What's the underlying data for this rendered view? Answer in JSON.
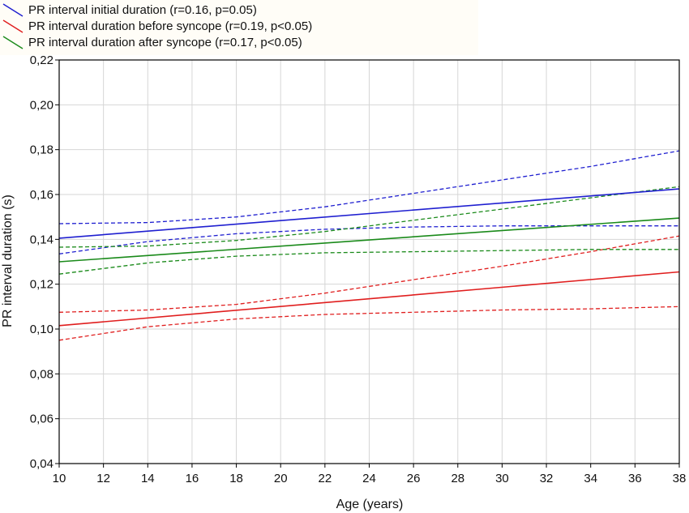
{
  "chart_data": {
    "type": "line",
    "title": "",
    "xlabel": "Age (years)",
    "ylabel": "PR interval duration (s)",
    "xlim": [
      10,
      38
    ],
    "ylim": [
      0.04,
      0.22
    ],
    "x_ticks": [
      10,
      12,
      14,
      16,
      18,
      20,
      22,
      24,
      26,
      28,
      30,
      32,
      34,
      36,
      38
    ],
    "x_tick_labels": [
      "10",
      "12",
      "14",
      "16",
      "18",
      "20",
      "22",
      "24",
      "26",
      "28",
      "30",
      "32",
      "34",
      "36",
      "38"
    ],
    "y_ticks": [
      0.04,
      0.06,
      0.08,
      0.1,
      0.12,
      0.14,
      0.16,
      0.18,
      0.2,
      0.22
    ],
    "y_tick_labels": [
      "0,04",
      "0,06",
      "0,08",
      "0,10",
      "0,12",
      "0,14",
      "0,16",
      "0,18",
      "0,20",
      "0,22"
    ],
    "grid": true,
    "legend_position": "top-left",
    "series": [
      {
        "name": "PR interval initial duration (r=0.16, p=0.05)",
        "color": "#1f1fd0",
        "x": [
          10,
          38
        ],
        "y": [
          0.1405,
          0.1625
        ],
        "ci_x": [
          10,
          14,
          18,
          22,
          26,
          30,
          34,
          38
        ],
        "ci_upper": [
          0.147,
          0.1475,
          0.15,
          0.1545,
          0.1605,
          0.1665,
          0.1725,
          0.1795
        ],
        "ci_lower": [
          0.1335,
          0.139,
          0.1425,
          0.1445,
          0.1455,
          0.146,
          0.146,
          0.146
        ]
      },
      {
        "name": "PR interval duration before syncope (r=0.19, p<0.05)",
        "color": "#e01e1e",
        "x": [
          10,
          38
        ],
        "y": [
          0.1015,
          0.1255
        ],
        "ci_x": [
          10,
          14,
          18,
          22,
          26,
          30,
          34,
          38
        ],
        "ci_upper": [
          0.1075,
          0.1085,
          0.111,
          0.116,
          0.122,
          0.128,
          0.1345,
          0.1415
        ],
        "ci_lower": [
          0.095,
          0.101,
          0.1045,
          0.1065,
          0.1075,
          0.1085,
          0.109,
          0.11
        ]
      },
      {
        "name": "PR interval duration after syncope (r=0.17, p<0.05)",
        "color": "#1a8a1a",
        "x": [
          10,
          38
        ],
        "y": [
          0.13,
          0.1495
        ],
        "ci_x": [
          10,
          14,
          18,
          22,
          26,
          30,
          34,
          38
        ],
        "ci_upper": [
          0.1365,
          0.137,
          0.1395,
          0.1435,
          0.1485,
          0.1535,
          0.1585,
          0.1635
        ],
        "ci_lower": [
          0.1245,
          0.1295,
          0.1325,
          0.134,
          0.1345,
          0.135,
          0.1355,
          0.1355
        ]
      }
    ]
  }
}
